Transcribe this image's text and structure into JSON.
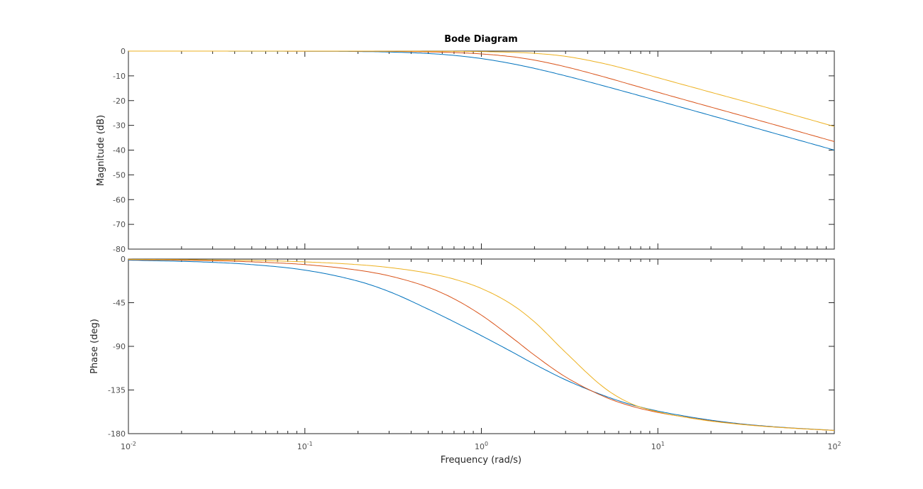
{
  "chart_data": {
    "type": "line",
    "title": "Bode Diagram",
    "xlabel": "Frequency  (rad/s)",
    "x_scale": "log",
    "xlim": [
      0.01,
      100
    ],
    "x_ticks": [
      {
        "base": "10",
        "exp": "-2"
      },
      {
        "base": "10",
        "exp": "-1"
      },
      {
        "base": "10",
        "exp": "0"
      },
      {
        "base": "10",
        "exp": "1"
      },
      {
        "base": "10",
        "exp": "2"
      }
    ],
    "grid": false,
    "colors": [
      "#0072BD",
      "#D95319",
      "#EDB120"
    ],
    "panels": [
      {
        "name": "magnitude",
        "ylabel": "Magnitude (dB)",
        "ylim": [
          -80,
          0
        ],
        "y_ticks": [
          "0",
          "-10",
          "-20",
          "-30",
          "-40",
          "-50",
          "-60",
          "-70",
          "-80"
        ],
        "series": [
          {
            "x": [
              0.01,
              0.05,
              0.1,
              0.2,
              0.3,
              0.5,
              0.7,
              1,
              1.5,
              2,
              3,
              5,
              7,
              10,
              20,
              30,
              50,
              100
            ],
            "values": [
              0,
              -0.02,
              -0.04,
              -0.17,
              -0.37,
              -0.97,
              -1.74,
              -3.01,
              -5.12,
              -6.99,
              -10.0,
              -14.15,
              -16.99,
              -20.04,
              -26.02,
              -29.54,
              -33.98,
              -40.0
            ]
          },
          {
            "x": [
              0.01,
              0.05,
              0.1,
              0.2,
              0.3,
              0.5,
              0.7,
              1,
              1.5,
              2,
              3,
              5,
              7,
              10,
              20,
              30,
              50,
              100
            ],
            "values": [
              0,
              -0.01,
              -0.02,
              -0.05,
              -0.11,
              -0.3,
              -0.58,
              -1.14,
              -2.3,
              -3.65,
              -6.34,
              -10.5,
              -13.47,
              -16.63,
              -22.63,
              -26.1,
              -30.5,
              -36.55
            ]
          },
          {
            "x": [
              0.01,
              0.05,
              0.1,
              0.2,
              0.3,
              0.5,
              0.7,
              1,
              1.5,
              2,
              3,
              5,
              7,
              10,
              20,
              30,
              50,
              100
            ],
            "values": [
              0,
              0,
              0,
              -0.01,
              -0.02,
              -0.05,
              -0.1,
              -0.21,
              -0.49,
              -0.9,
              -2.12,
              -5.12,
              -7.72,
              -10.75,
              -16.63,
              -20.05,
              -24.41,
              -30.45
            ]
          }
        ]
      },
      {
        "name": "phase",
        "ylabel": "Phase (deg)",
        "ylim": [
          -180,
          0
        ],
        "y_ticks": [
          "0",
          "-45",
          "-90",
          "-135",
          "-180"
        ],
        "series": [
          {
            "x": [
              0.01,
              0.03,
              0.05,
              0.1,
              0.2,
              0.3,
              0.5,
              0.7,
              1,
              1.5,
              2,
              3,
              5,
              7,
              10,
              15,
              20,
              30,
              50,
              100
            ],
            "values": [
              -1.1,
              -3.4,
              -5.7,
              -11.4,
              -22.8,
              -33.5,
              -51.7,
              -64.7,
              -79.0,
              -96.0,
              -108.4,
              -124.5,
              -141.1,
              -149.9,
              -156.7,
              -162.6,
              -166.1,
              -170.0,
              -173.4,
              -176.6
            ]
          },
          {
            "x": [
              0.01,
              0.03,
              0.05,
              0.1,
              0.2,
              0.3,
              0.5,
              0.7,
              1,
              1.5,
              2,
              3,
              5,
              7,
              10,
              15,
              20,
              30,
              50,
              100
            ],
            "values": [
              -0.6,
              -1.7,
              -2.9,
              -5.7,
              -11.5,
              -17.3,
              -29.1,
              -41.0,
              -57.8,
              -81.4,
              -99.1,
              -121.5,
              -142.1,
              -151.4,
              -158.1,
              -163.5,
              -166.8,
              -170.4,
              -173.6,
              -176.7
            ]
          },
          {
            "x": [
              0.01,
              0.03,
              0.05,
              0.1,
              0.2,
              0.3,
              0.5,
              0.7,
              1,
              1.5,
              2,
              3,
              5,
              7,
              10,
              15,
              20,
              30,
              50,
              100
            ],
            "values": [
              -0.3,
              -0.9,
              -1.4,
              -2.9,
              -5.8,
              -8.7,
              -14.6,
              -20.7,
              -30.3,
              -47.3,
              -64.8,
              -96.2,
              -133.1,
              -148.8,
              -157.5,
              -163.7,
              -167.1,
              -170.6,
              -173.7,
              -176.7
            ]
          }
        ]
      }
    ]
  }
}
